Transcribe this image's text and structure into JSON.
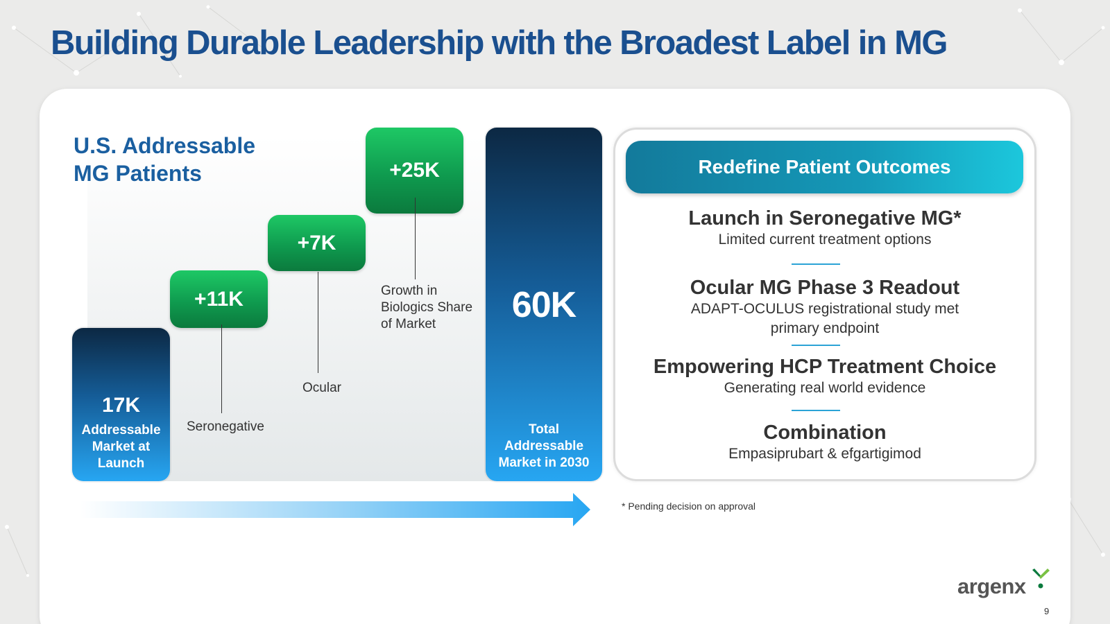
{
  "slide": {
    "title": "Building Durable Leadership with the Broadest Label in MG",
    "page_number": "9",
    "footnote": "* Pending decision on approval"
  },
  "chart": {
    "heading_line1": "U.S. Addressable",
    "heading_line2": "MG Patients",
    "launch": {
      "value": "17K",
      "label_lines": [
        "Addressable",
        "Market at",
        "Launch"
      ]
    },
    "increments": [
      {
        "value": "+11K",
        "label_lines": [
          "Seronegative"
        ]
      },
      {
        "value": "+7K",
        "label_lines": [
          "Ocular"
        ]
      },
      {
        "value": "+25K",
        "label_lines": [
          "Growth in",
          "Biologics Share",
          "of Market"
        ]
      }
    ],
    "total": {
      "value": "60K",
      "label_lines": [
        "Total",
        "Addressable",
        "Market in 2030"
      ]
    }
  },
  "chart_data": {
    "type": "bar",
    "categories": [
      "Addressable Market at Launch",
      "Seronegative",
      "Ocular",
      "Growth in Biologics Share of Market",
      "Total Addressable Market in 2030"
    ],
    "values": [
      17,
      11,
      7,
      25,
      60
    ],
    "title": "U.S. Addressable MG Patients"
  },
  "panel": {
    "header": "Redefine Patient Outcomes",
    "items": [
      {
        "heading": "Launch in Seronegative MG*",
        "sub_lines": [
          "Limited current treatment options"
        ]
      },
      {
        "heading": "Ocular MG Phase 3 Readout",
        "sub_lines": [
          "ADAPT-OCULUS registrational study met",
          "primary endpoint"
        ]
      },
      {
        "heading": "Empowering HCP Treatment Choice",
        "sub_lines": [
          "Generating real world evidence"
        ]
      },
      {
        "heading": "Combination",
        "sub_lines": [
          "Empasiprubart & efgartigimod"
        ]
      }
    ]
  },
  "logo": {
    "text": "argenx"
  },
  "colors": {
    "title": "#1a4f8f",
    "accent_teal": "#1599b8",
    "green": "#0f9b4f",
    "blue": "#27a6f2"
  }
}
